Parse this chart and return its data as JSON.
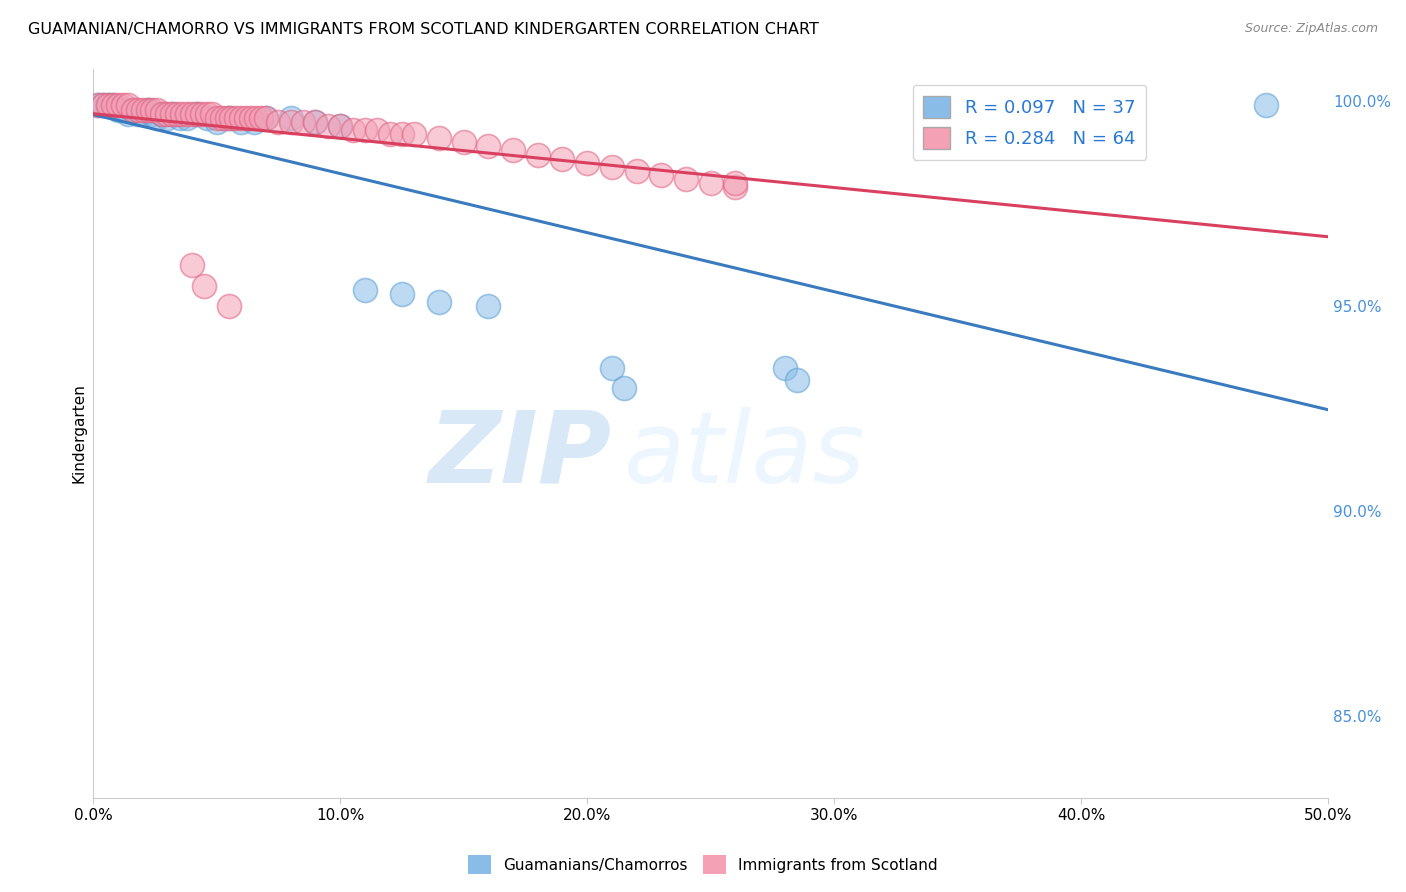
{
  "title": "GUAMANIAN/CHAMORRO VS IMMIGRANTS FROM SCOTLAND KINDERGARTEN CORRELATION CHART",
  "source": "Source: ZipAtlas.com",
  "ylabel": "Kindergarten",
  "xlim": [
    0.0,
    0.5
  ],
  "ylim": [
    0.83,
    1.008
  ],
  "xtick_labels": [
    "0.0%",
    "10.0%",
    "20.0%",
    "30.0%",
    "40.0%",
    "50.0%"
  ],
  "xtick_values": [
    0.0,
    0.1,
    0.2,
    0.3,
    0.4,
    0.5
  ],
  "ytick_labels": [
    "85.0%",
    "90.0%",
    "95.0%",
    "100.0%"
  ],
  "ytick_values": [
    0.85,
    0.9,
    0.95,
    1.0
  ],
  "legend_labels": [
    "Guamanians/Chamorros",
    "Immigrants from Scotland"
  ],
  "blue_color": "#89bde8",
  "pink_color": "#f4a0b5",
  "blue_edge_color": "#5a9fd4",
  "pink_edge_color": "#e06080",
  "blue_line_color": "#3a7bbf",
  "pink_line_color": "#d94060",
  "blue_R": 0.097,
  "blue_N": 37,
  "pink_R": 0.284,
  "pink_N": 64,
  "blue_scatter_x": [
    0.002,
    0.004,
    0.006,
    0.008,
    0.01,
    0.012,
    0.014,
    0.016,
    0.018,
    0.02,
    0.022,
    0.024,
    0.026,
    0.028,
    0.03,
    0.032,
    0.035,
    0.038,
    0.042,
    0.046,
    0.05,
    0.055,
    0.06,
    0.065,
    0.07,
    0.08,
    0.09,
    0.1,
    0.11,
    0.125,
    0.14,
    0.16,
    0.21,
    0.215,
    0.28,
    0.285,
    0.475
  ],
  "blue_scatter_y": [
    0.999,
    0.999,
    0.999,
    0.999,
    0.998,
    0.998,
    0.997,
    0.998,
    0.997,
    0.997,
    0.998,
    0.997,
    0.996,
    0.997,
    0.996,
    0.997,
    0.996,
    0.996,
    0.997,
    0.996,
    0.995,
    0.996,
    0.995,
    0.995,
    0.996,
    0.996,
    0.995,
    0.994,
    0.954,
    0.953,
    0.951,
    0.95,
    0.935,
    0.93,
    0.935,
    0.932,
    0.999
  ],
  "pink_scatter_x": [
    0.002,
    0.004,
    0.006,
    0.008,
    0.01,
    0.012,
    0.014,
    0.016,
    0.018,
    0.02,
    0.022,
    0.024,
    0.026,
    0.028,
    0.03,
    0.032,
    0.034,
    0.036,
    0.038,
    0.04,
    0.042,
    0.044,
    0.046,
    0.048,
    0.05,
    0.052,
    0.054,
    0.056,
    0.058,
    0.06,
    0.062,
    0.064,
    0.066,
    0.068,
    0.07,
    0.075,
    0.08,
    0.085,
    0.09,
    0.095,
    0.1,
    0.105,
    0.11,
    0.115,
    0.12,
    0.125,
    0.13,
    0.14,
    0.15,
    0.16,
    0.17,
    0.18,
    0.19,
    0.2,
    0.21,
    0.22,
    0.23,
    0.24,
    0.25,
    0.26,
    0.04,
    0.045,
    0.055,
    0.26
  ],
  "pink_scatter_y": [
    0.999,
    0.999,
    0.999,
    0.999,
    0.999,
    0.999,
    0.999,
    0.998,
    0.998,
    0.998,
    0.998,
    0.998,
    0.998,
    0.997,
    0.997,
    0.997,
    0.997,
    0.997,
    0.997,
    0.997,
    0.997,
    0.997,
    0.997,
    0.997,
    0.996,
    0.996,
    0.996,
    0.996,
    0.996,
    0.996,
    0.996,
    0.996,
    0.996,
    0.996,
    0.996,
    0.995,
    0.995,
    0.995,
    0.995,
    0.994,
    0.994,
    0.993,
    0.993,
    0.993,
    0.992,
    0.992,
    0.992,
    0.991,
    0.99,
    0.989,
    0.988,
    0.987,
    0.986,
    0.985,
    0.984,
    0.983,
    0.982,
    0.981,
    0.98,
    0.979,
    0.96,
    0.955,
    0.95,
    0.98
  ],
  "watermark_zip": "ZIP",
  "watermark_atlas": "atlas",
  "background_color": "#ffffff",
  "grid_color": "#cccccc"
}
